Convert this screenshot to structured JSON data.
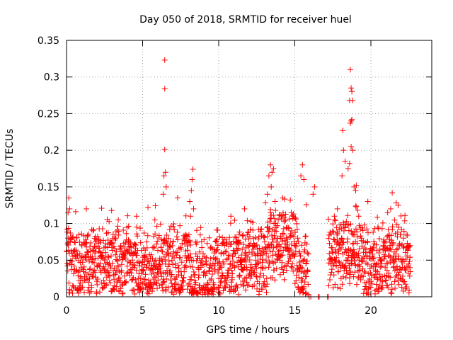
{
  "chart_data": {
    "type": "scatter",
    "title": "Day 050 of 2018, SRMTID for receiver huel",
    "xlabel": "GPS time / hours",
    "ylabel": "SRMTID / TECUs",
    "xlim": [
      0,
      24
    ],
    "ylim": [
      0,
      0.35
    ],
    "x_ticks": [
      0,
      5,
      10,
      15,
      20
    ],
    "x_tick_labels": [
      "0",
      "5",
      "10",
      "15",
      "20"
    ],
    "y_ticks": [
      0,
      0.05,
      0.1,
      0.15,
      0.2,
      0.25,
      0.3,
      0.35
    ],
    "y_tick_labels": [
      "0",
      "0.05",
      "0.1",
      "0.15",
      "0.2",
      "0.25",
      "0.3",
      "0.35"
    ],
    "grid": true,
    "marker": "+",
    "series_color": "#ff0000",
    "background_band": {
      "x_range": [
        0.0,
        22.6
      ],
      "y_range": [
        0.005,
        0.09
      ]
    },
    "peaks": [
      {
        "x": 6.45,
        "y": 0.323
      },
      {
        "x": 6.45,
        "y": 0.284
      },
      {
        "x": 6.45,
        "y": 0.201
      },
      {
        "x": 6.5,
        "y": 0.17
      },
      {
        "x": 6.4,
        "y": 0.165
      },
      {
        "x": 6.55,
        "y": 0.15
      },
      {
        "x": 6.35,
        "y": 0.14
      },
      {
        "x": 8.3,
        "y": 0.174
      },
      {
        "x": 8.25,
        "y": 0.16
      },
      {
        "x": 8.2,
        "y": 0.145
      },
      {
        "x": 8.1,
        "y": 0.13
      },
      {
        "x": 8.35,
        "y": 0.12
      },
      {
        "x": 8.15,
        "y": 0.11
      },
      {
        "x": 1.3,
        "y": 0.12
      },
      {
        "x": 0.15,
        "y": 0.135
      },
      {
        "x": 0.2,
        "y": 0.12
      },
      {
        "x": 0.1,
        "y": 0.115
      },
      {
        "x": 4.6,
        "y": 0.11
      },
      {
        "x": 5.8,
        "y": 0.105
      },
      {
        "x": 3.4,
        "y": 0.105
      },
      {
        "x": 10.8,
        "y": 0.11
      },
      {
        "x": 11.7,
        "y": 0.12
      },
      {
        "x": 13.4,
        "y": 0.18
      },
      {
        "x": 13.5,
        "y": 0.17
      },
      {
        "x": 13.6,
        "y": 0.175
      },
      {
        "x": 13.3,
        "y": 0.165
      },
      {
        "x": 13.45,
        "y": 0.15
      },
      {
        "x": 13.2,
        "y": 0.14
      },
      {
        "x": 13.7,
        "y": 0.13
      },
      {
        "x": 15.5,
        "y": 0.18
      },
      {
        "x": 15.6,
        "y": 0.16
      },
      {
        "x": 15.4,
        "y": 0.165
      },
      {
        "x": 14.2,
        "y": 0.135
      },
      {
        "x": 16.3,
        "y": 0.15
      },
      {
        "x": 16.2,
        "y": 0.14
      },
      {
        "x": 18.65,
        "y": 0.31
      },
      {
        "x": 18.7,
        "y": 0.285
      },
      {
        "x": 18.75,
        "y": 0.28
      },
      {
        "x": 18.6,
        "y": 0.268
      },
      {
        "x": 18.8,
        "y": 0.268
      },
      {
        "x": 18.7,
        "y": 0.24
      },
      {
        "x": 18.65,
        "y": 0.237
      },
      {
        "x": 18.75,
        "y": 0.242
      },
      {
        "x": 18.15,
        "y": 0.227
      },
      {
        "x": 18.7,
        "y": 0.205
      },
      {
        "x": 18.2,
        "y": 0.2
      },
      {
        "x": 18.8,
        "y": 0.2
      },
      {
        "x": 18.3,
        "y": 0.185
      },
      {
        "x": 18.6,
        "y": 0.182
      },
      {
        "x": 18.5,
        "y": 0.175
      },
      {
        "x": 18.1,
        "y": 0.165
      },
      {
        "x": 18.9,
        "y": 0.15
      },
      {
        "x": 19.0,
        "y": 0.145
      },
      {
        "x": 19.2,
        "y": 0.11
      },
      {
        "x": 19.8,
        "y": 0.13
      },
      {
        "x": 21.4,
        "y": 0.142
      },
      {
        "x": 21.8,
        "y": 0.125
      },
      {
        "x": 21.3,
        "y": 0.12
      },
      {
        "x": 21.1,
        "y": 0.115
      },
      {
        "x": 17.6,
        "y": 0.11
      },
      {
        "x": 17.8,
        "y": 0.12
      }
    ],
    "gaps": [
      {
        "x_range": [
          15.9,
          17.2
        ]
      }
    ]
  }
}
